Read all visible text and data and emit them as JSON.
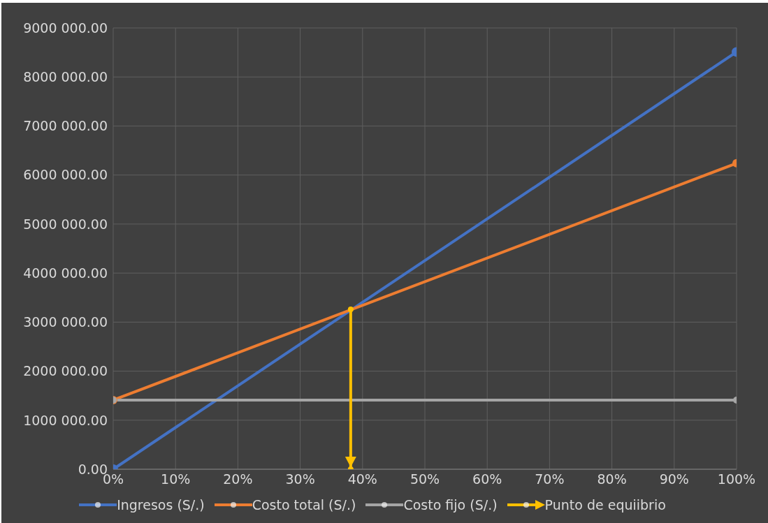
{
  "chart_data": {
    "type": "line",
    "series": [
      {
        "name": "Ingresos (S/.)",
        "color": "#4472c4",
        "x": [
          0,
          100
        ],
        "values": [
          0,
          8510000
        ]
      },
      {
        "name": "Costo total (S/.)",
        "color": "#ed7d31",
        "x": [
          0,
          100
        ],
        "values": [
          1410000,
          6240000
        ]
      },
      {
        "name": "Costo fijo (S/.)",
        "color": "#a5a5a5",
        "x": [
          0,
          100
        ],
        "values": [
          1410000,
          1410000
        ]
      },
      {
        "name": "Punto de equiibrio",
        "color": "#ffc000",
        "x": [
          38.1,
          38.1
        ],
        "values": [
          3260000,
          0
        ]
      }
    ],
    "xlim": [
      0,
      100
    ],
    "xticks": [
      {
        "value": 0,
        "label": "0%"
      },
      {
        "value": 10,
        "label": "10%"
      },
      {
        "value": 20,
        "label": "20%"
      },
      {
        "value": 30,
        "label": "30%"
      },
      {
        "value": 40,
        "label": "40%"
      },
      {
        "value": 50,
        "label": "50%"
      },
      {
        "value": 60,
        "label": "60%"
      },
      {
        "value": 70,
        "label": "70%"
      },
      {
        "value": 80,
        "label": "80%"
      },
      {
        "value": 90,
        "label": "90%"
      },
      {
        "value": 100,
        "label": "100%"
      }
    ],
    "ylim": [
      0,
      9000000
    ],
    "yticks": [
      {
        "value": 0,
        "label": "0.00"
      },
      {
        "value": 1000000,
        "label": "1000 000.00"
      },
      {
        "value": 2000000,
        "label": "2000 000.00"
      },
      {
        "value": 3000000,
        "label": "3000 000.00"
      },
      {
        "value": 4000000,
        "label": "4000 000.00"
      },
      {
        "value": 5000000,
        "label": "5000 000.00"
      },
      {
        "value": 6000000,
        "label": "6000 000.00"
      },
      {
        "value": 7000000,
        "label": "7000 000.00"
      },
      {
        "value": 8000000,
        "label": "8000 000.00"
      },
      {
        "value": 9000000,
        "label": "9000 000.00"
      }
    ],
    "grid": true,
    "legend": "bottom",
    "marker": "circle",
    "line_style": "solid"
  }
}
